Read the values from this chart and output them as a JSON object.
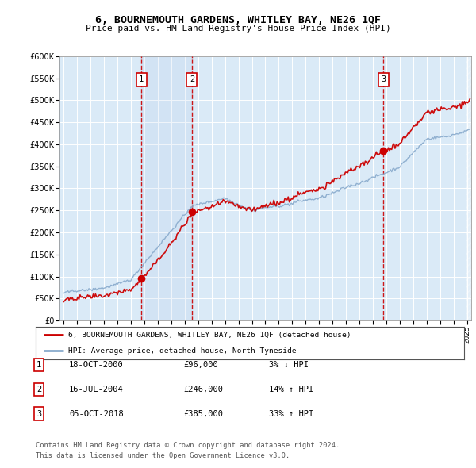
{
  "title": "6, BOURNEMOUTH GARDENS, WHITLEY BAY, NE26 1QF",
  "subtitle": "Price paid vs. HM Land Registry's House Price Index (HPI)",
  "ylim": [
    0,
    600000
  ],
  "yticks": [
    0,
    50000,
    100000,
    150000,
    200000,
    250000,
    300000,
    350000,
    400000,
    450000,
    500000,
    550000,
    600000
  ],
  "xlim_start": 1994.7,
  "xlim_end": 2025.3,
  "bg_color": "#daeaf7",
  "grid_color": "#ffffff",
  "sale_color": "#cc0000",
  "hpi_color": "#88aacc",
  "sale_dates": [
    2000.79,
    2004.54,
    2018.76
  ],
  "sale_prices": [
    96000,
    246000,
    385000
  ],
  "sale_labels": [
    "1",
    "2",
    "3"
  ],
  "vline_color": "#cc0000",
  "legend_line1": "6, BOURNEMOUTH GARDENS, WHITLEY BAY, NE26 1QF (detached house)",
  "legend_line2": "HPI: Average price, detached house, North Tyneside",
  "table_data": [
    [
      "1",
      "18-OCT-2000",
      "£96,000",
      "3% ↓ HPI"
    ],
    [
      "2",
      "16-JUL-2004",
      "£246,000",
      "14% ↑ HPI"
    ],
    [
      "3",
      "05-OCT-2018",
      "£385,000",
      "33% ↑ HPI"
    ]
  ],
  "footnote1": "Contains HM Land Registry data © Crown copyright and database right 2024.",
  "footnote2": "This data is licensed under the Open Government Licence v3.0."
}
